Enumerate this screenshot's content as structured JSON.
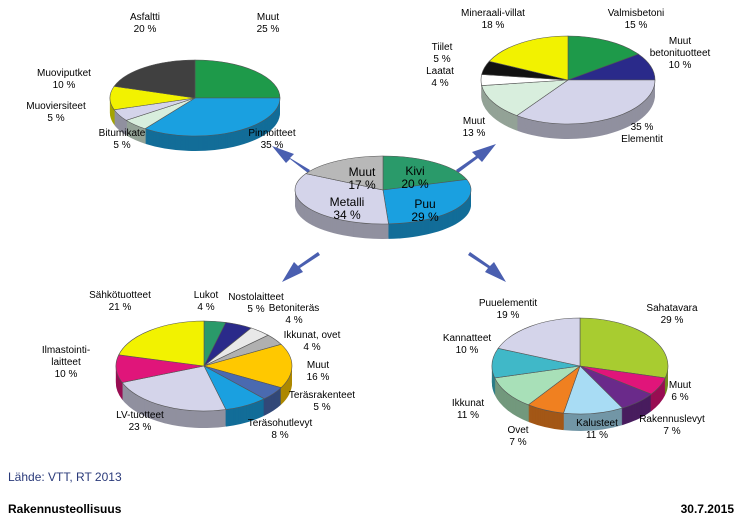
{
  "chart_data": [
    {
      "type": "pie",
      "categories": [
        "Muut",
        "Pinnoitteet",
        "Bitumikate",
        "Muoviersiteet",
        "Muoviputket",
        "Asfaltti"
      ],
      "values": [
        25,
        35,
        5,
        5,
        10,
        20
      ],
      "value_labels": [
        "25 %",
        "35 %",
        "5 %",
        "5 %",
        "10 %",
        "20 %"
      ],
      "colors": [
        "#1e9a4a",
        "#1aa0e0",
        "#d8eedd",
        "#d4d4ea",
        "#f2f200",
        "#404040"
      ]
    },
    {
      "type": "pie",
      "categories": [
        "Valmisbetoni",
        "Muut betonituotteet",
        "Elementit",
        "Muut",
        "Laatat",
        "Tiilet",
        "Mineraali-villat"
      ],
      "values": [
        15,
        10,
        35,
        13,
        4,
        5,
        18
      ],
      "value_labels": [
        "15 %",
        "10 %",
        "35 %",
        "13 %",
        "4 %",
        "5 %",
        "18 %"
      ],
      "colors": [
        "#1e9a4a",
        "#2a2a8a",
        "#d4d4ea",
        "#d8eedd",
        "#ffffff",
        "#111111",
        "#f2f200"
      ]
    },
    {
      "type": "pie",
      "categories": [
        "Kivi",
        "Puu",
        "Metalli",
        "Muut"
      ],
      "values": [
        20,
        29,
        34,
        17
      ],
      "value_labels": [
        "20 %",
        "29 %",
        "34 %",
        "17 %"
      ],
      "colors": [
        "#2a9a6a",
        "#1aa0e0",
        "#d4d4ea",
        "#b8b8b8"
      ]
    },
    {
      "type": "pie",
      "categories": [
        "Lukot",
        "Nostolaitteet",
        "Betoniteräs",
        "Ikkunat, ovet",
        "Muut",
        "Teräsrakenteet",
        "Teräsohutlevyt",
        "LV-tuotteet",
        "Ilmastointi-laitteet",
        "Sähkötuotteet"
      ],
      "values": [
        4,
        5,
        4,
        4,
        16,
        5,
        8,
        23,
        10,
        21
      ],
      "value_labels": [
        "4 %",
        "5 %",
        "4 %",
        "4 %",
        "16 %",
        "5 %",
        "8 %",
        "23 %",
        "10 %",
        "21 %"
      ],
      "colors": [
        "#2a9a6a",
        "#2a2a8a",
        "#e8e8e8",
        "#b0b0b0",
        "#ffc800",
        "#4a6ab0",
        "#1aa0e0",
        "#d4d4ea",
        "#e0157a",
        "#f2f200"
      ]
    },
    {
      "type": "pie",
      "categories": [
        "Sahatavara",
        "Muut",
        "Rakennuslevyt",
        "Kalusteet",
        "Ovet",
        "Ikkunat",
        "Kannatteet",
        "Puuelementit"
      ],
      "values": [
        29,
        6,
        7,
        11,
        7,
        11,
        10,
        19
      ],
      "value_labels": [
        "29 %",
        "6 %",
        "7 %",
        "11 %",
        "7 %",
        "11 %",
        "10 %",
        "19 %"
      ],
      "colors": [
        "#a8cc30",
        "#e0157a",
        "#6a2a8a",
        "#a8dcf4",
        "#f08020",
        "#a8e0b8",
        "#40b8c8",
        "#d4d4ea"
      ]
    }
  ],
  "footer": {
    "source": "Lähde: VTT, RT 2013",
    "org": "Rakennusteollisuus",
    "date": "30.7.2015"
  }
}
